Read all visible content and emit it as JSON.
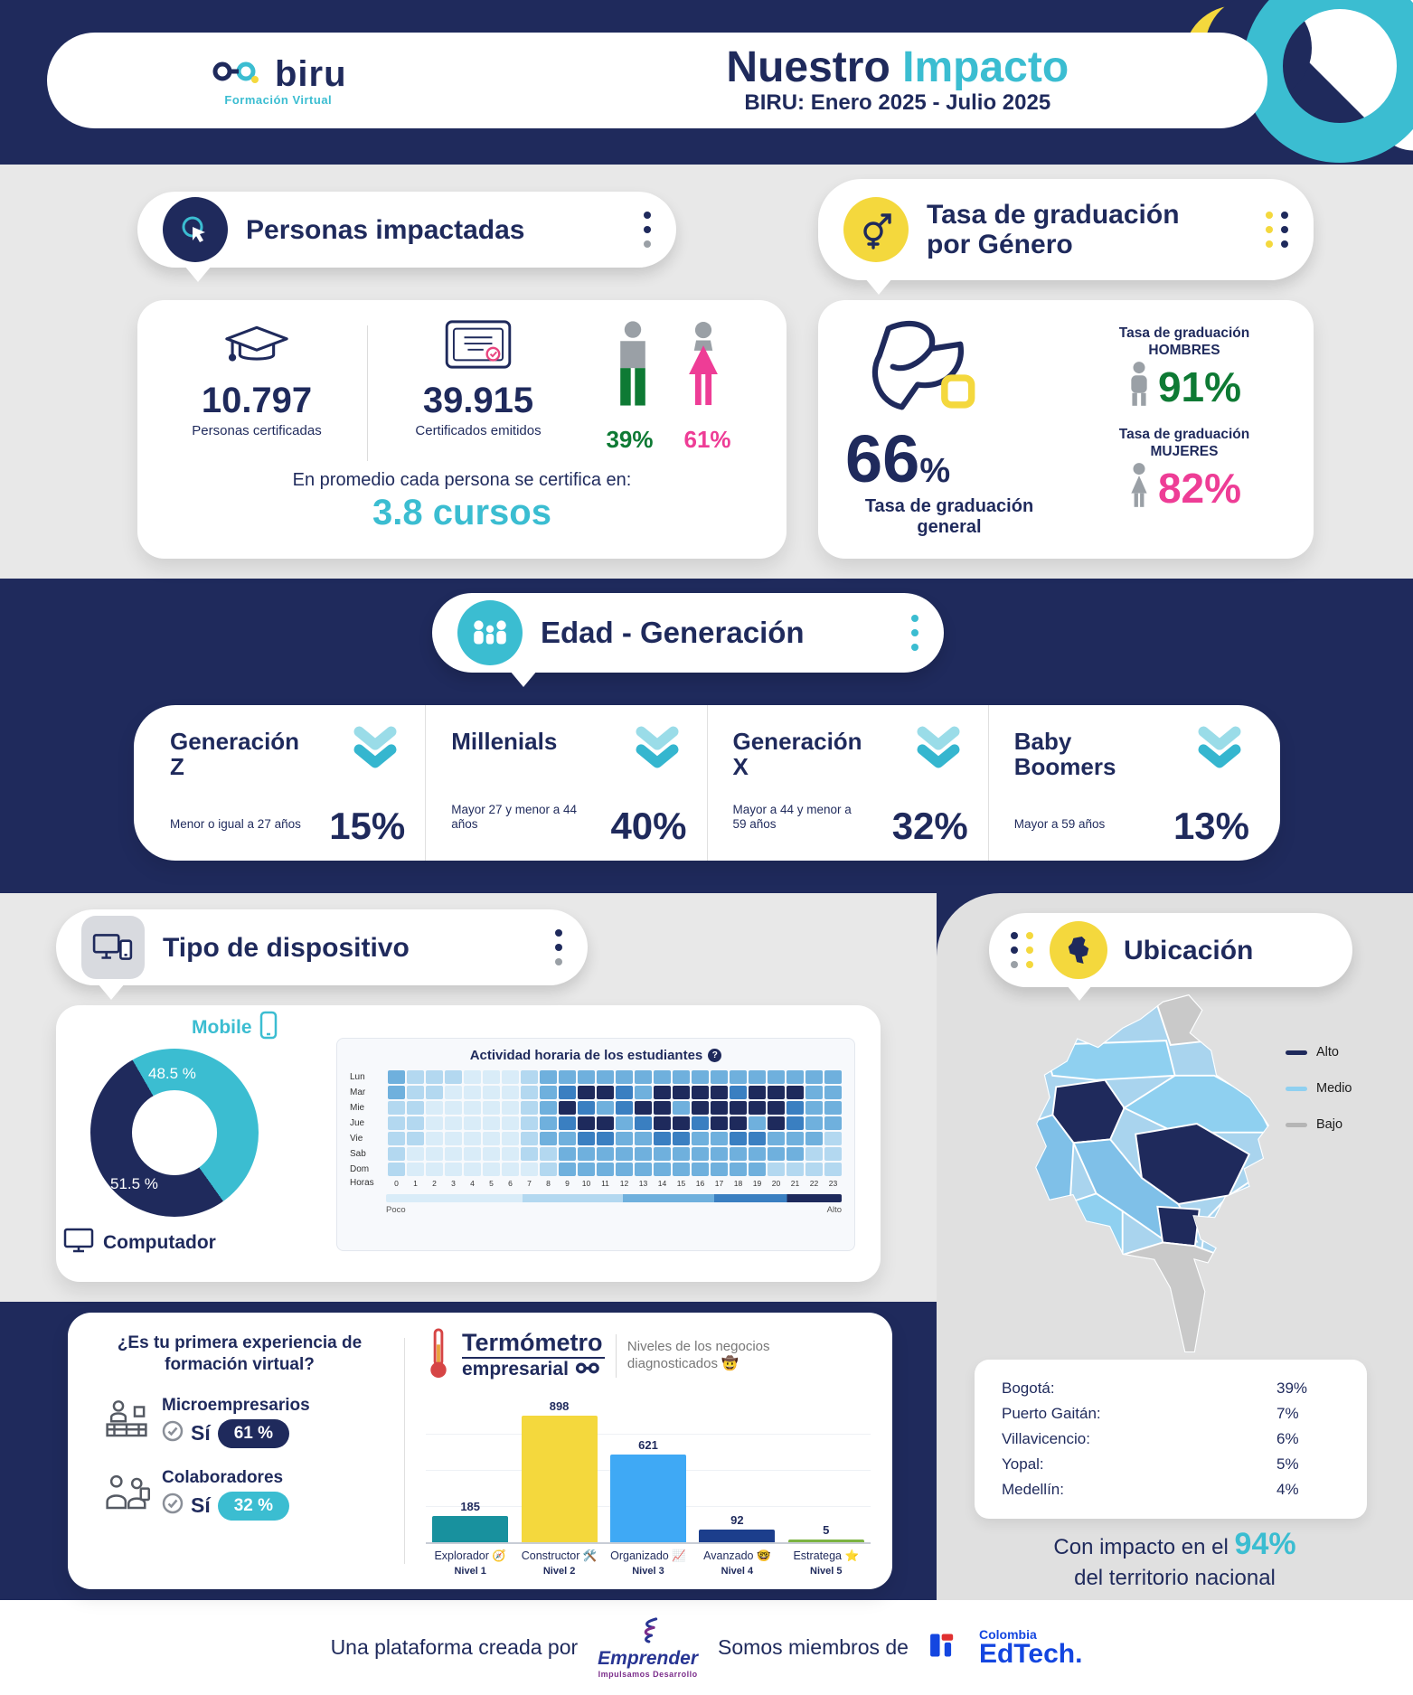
{
  "colors": {
    "navy": "#1f2a5c",
    "teal": "#3bbdd1",
    "yellow": "#f4d83d",
    "pink": "#ee3d96",
    "green": "#0e7a34"
  },
  "header": {
    "brand": "biru",
    "brand_tagline": "Formación Virtual",
    "title_main": "Nuestro",
    "title_accent": "Impacto",
    "subtitle": "BIRU: Enero 2025 - Julio 2025"
  },
  "personas": {
    "title": "Personas impactadas",
    "certified_value": "10.797",
    "certified_label": "Personas certificadas",
    "certificates_value": "39.915",
    "certificates_label": "Certificados emitidos",
    "male_pct": "39%",
    "female_pct": "61%",
    "avg_prefix": "En promedio cada persona se certifica en:",
    "avg_value": "3.8 cursos"
  },
  "graduacion": {
    "title": "Tasa de graduación por Género",
    "general_value": "66",
    "percent_sign": "%",
    "general_label": "Tasa de graduación general",
    "men_label_top": "Tasa de graduación",
    "men_label_bottom": "HOMBRES",
    "men_value": "91%",
    "women_label_top": "Tasa de graduación",
    "women_label_bottom": "MUJERES",
    "women_value": "82%"
  },
  "edad": {
    "title": "Edad - Generación",
    "groups": [
      {
        "name": "Generación Z",
        "range": "Menor o igual a 27 años",
        "value": "15%"
      },
      {
        "name": "Millenials",
        "range": "Mayor 27 y menor a 44 años",
        "value": "40%"
      },
      {
        "name": "Generación X",
        "range": "Mayor a 44 y menor a 59 años",
        "value": "32%"
      },
      {
        "name": "Baby Boomers",
        "range": "Mayor a 59 años",
        "value": "13%"
      }
    ]
  },
  "dispositivo": {
    "title": "Tipo de dispositivo",
    "mobile_label": "Mobile",
    "mobile_pct": "48.5 %",
    "computer_label": "Computador",
    "computer_pct": "51.5 %",
    "heatmap_title": "Actividad horaria de los estudiantes",
    "help_glyph": "?",
    "hours_label": "Horas",
    "legend_low": "Poco",
    "legend_high": "Alto"
  },
  "experiencia": {
    "question": "¿Es tu primera experiencia de formación virtual?",
    "rows": [
      {
        "label": "Microempresarios",
        "answer": "Sí",
        "value": "61 %",
        "pill_color": "#1f2a5c"
      },
      {
        "label": "Colaboradores",
        "answer": "Sí",
        "value": "32 %",
        "pill_color": "#3bbdd1"
      }
    ]
  },
  "termometro": {
    "title_top": "Termómetro",
    "title_bottom": "empresarial",
    "subtitle": "Niveles de los negocios diagnosticados 🤠",
    "bars": [
      {
        "label": "Explorador 🧭",
        "nivel": "Nivel 1",
        "value": "185"
      },
      {
        "label": "Constructor 🛠️",
        "nivel": "Nivel 2",
        "value": "898"
      },
      {
        "label": "Organizado 📈",
        "nivel": "Nivel 3",
        "value": "621"
      },
      {
        "label": "Avanzado 🤓",
        "nivel": "Nivel 4",
        "value": "92"
      },
      {
        "label": "Estratega ⭐",
        "nivel": "Nivel 5",
        "value": "5"
      }
    ]
  },
  "ubicacion": {
    "title": "Ubicación",
    "legend": [
      {
        "label": "Alto",
        "color": "#1f2a5c"
      },
      {
        "label": "Medio",
        "color": "#8fd0f0"
      },
      {
        "label": "Bajo",
        "color": "#b5b5b5"
      }
    ],
    "cities": [
      {
        "name": "Bogotá:",
        "value": "39%"
      },
      {
        "name": "Puerto Gaitán:",
        "value": "7%"
      },
      {
        "name": "Villavicencio:",
        "value": "6%"
      },
      {
        "name": "Yopal:",
        "value": "5%"
      },
      {
        "name": "Medellín:",
        "value": "4%"
      }
    ],
    "impact_prefix": "Con impacto en el",
    "impact_value": "94%",
    "impact_suffix": "del territorio nacional"
  },
  "footer": {
    "created_by": "Una plataforma creada por",
    "emprender_name": "Emprender",
    "emprender_tagline": "Impulsamos Desarrollo",
    "members_of": "Somos miembros de",
    "edtech_country": "Colombia",
    "edtech_name": "EdTech."
  },
  "chart_data": [
    {
      "id": "genero",
      "type": "pie",
      "title": "Personas impactadas por género",
      "labels": [
        "Hombres",
        "Mujeres"
      ],
      "values": [
        39,
        61
      ],
      "unit": "%",
      "colors": [
        "#0e7a34",
        "#ee3d96"
      ]
    },
    {
      "id": "graduacion",
      "type": "bar",
      "title": "Tasa de graduación",
      "categories": [
        "General",
        "Hombres",
        "Mujeres"
      ],
      "values": [
        66,
        91,
        82
      ],
      "unit": "%"
    },
    {
      "id": "generaciones",
      "type": "bar",
      "title": "Edad - Generación",
      "categories": [
        "Generación Z",
        "Millenials",
        "Generación X",
        "Baby Boomers"
      ],
      "values": [
        15,
        40,
        32,
        13
      ],
      "unit": "%"
    },
    {
      "id": "device",
      "type": "pie",
      "title": "Tipo de dispositivo",
      "labels": [
        "Computador",
        "Mobile"
      ],
      "values": [
        51.5,
        48.5
      ],
      "unit": "%",
      "colors": [
        "#1f2a5c",
        "#3bbdd1"
      ]
    },
    {
      "id": "actividad",
      "type": "heatmap",
      "title": "Actividad horaria de los estudiantes",
      "rows": [
        "Lun",
        "Mar",
        "Mie",
        "Jue",
        "Vie",
        "Sab",
        "Dom"
      ],
      "cols": [
        0,
        1,
        2,
        3,
        4,
        5,
        6,
        7,
        8,
        9,
        10,
        11,
        12,
        13,
        14,
        15,
        16,
        17,
        18,
        19,
        20,
        21,
        22,
        23
      ],
      "palette": [
        "#d9ecf8",
        "#b3d8f0",
        "#6fb0dd",
        "#3a7fc1",
        "#1e2a5c"
      ],
      "scale_labels": [
        "Poco",
        "Alto"
      ],
      "values": [
        [
          2,
          1,
          1,
          1,
          0,
          0,
          0,
          1,
          2,
          2,
          2,
          2,
          2,
          2,
          2,
          2,
          2,
          2,
          2,
          2,
          2,
          2,
          2,
          2
        ],
        [
          2,
          1,
          1,
          0,
          0,
          0,
          0,
          1,
          2,
          3,
          4,
          4,
          3,
          2,
          4,
          4,
          4,
          4,
          3,
          4,
          4,
          4,
          2,
          2
        ],
        [
          1,
          1,
          0,
          0,
          0,
          0,
          0,
          1,
          2,
          4,
          3,
          2,
          3,
          4,
          4,
          2,
          4,
          4,
          4,
          4,
          4,
          3,
          2,
          2
        ],
        [
          1,
          1,
          0,
          0,
          0,
          0,
          0,
          1,
          2,
          3,
          4,
          4,
          2,
          3,
          4,
          4,
          3,
          4,
          4,
          2,
          4,
          3,
          2,
          2
        ],
        [
          1,
          1,
          0,
          0,
          0,
          0,
          0,
          1,
          2,
          2,
          3,
          3,
          2,
          2,
          3,
          3,
          2,
          2,
          3,
          3,
          2,
          2,
          2,
          1
        ],
        [
          1,
          0,
          0,
          0,
          0,
          0,
          0,
          1,
          1,
          2,
          2,
          2,
          2,
          2,
          2,
          2,
          2,
          2,
          2,
          2,
          2,
          2,
          1,
          1
        ],
        [
          1,
          0,
          0,
          0,
          0,
          0,
          0,
          0,
          1,
          2,
          2,
          2,
          2,
          2,
          2,
          2,
          2,
          2,
          2,
          2,
          1,
          1,
          1,
          1
        ]
      ]
    },
    {
      "id": "termometro",
      "type": "bar",
      "title": "Termómetro empresarial - Niveles de los negocios diagnosticados",
      "categories": [
        "Explorador",
        "Constructor",
        "Organizado",
        "Avanzado",
        "Estratega"
      ],
      "levels": [
        "Nivel 1",
        "Nivel 2",
        "Nivel 3",
        "Nivel 4",
        "Nivel 5"
      ],
      "values": [
        185,
        898,
        621,
        92,
        5
      ],
      "colors": [
        "#18919e",
        "#f4d83d",
        "#3fa9f5",
        "#1c3e8c",
        "#7cb342"
      ]
    },
    {
      "id": "ubicacion",
      "type": "bar",
      "title": "Ubicación",
      "categories": [
        "Bogotá",
        "Puerto Gaitán",
        "Villavicencio",
        "Yopal",
        "Medellín"
      ],
      "values": [
        39,
        7,
        6,
        5,
        4
      ],
      "unit": "%"
    }
  ]
}
